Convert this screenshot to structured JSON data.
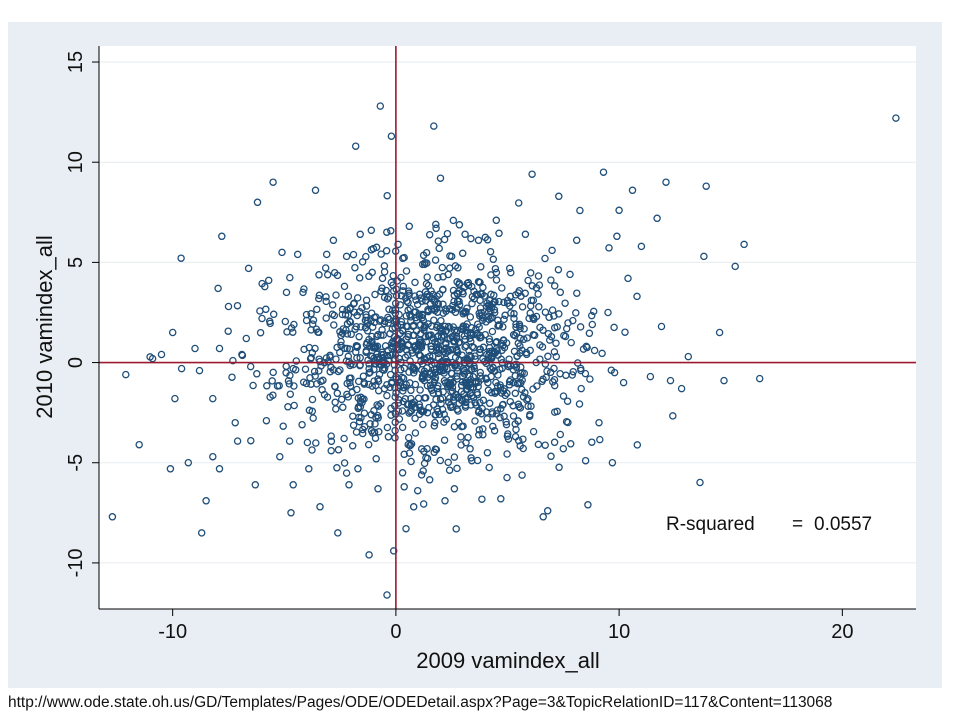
{
  "chart_data": {
    "type": "scatter",
    "title": "",
    "xlabel": "2009 vamindex_all",
    "ylabel": "2010 vamindex_all",
    "xlim": [
      -13.3,
      23.3
    ],
    "ylim": [
      -12.3,
      15.8
    ],
    "x_ticks": [
      -10,
      0,
      10,
      20
    ],
    "x_tick_labels": [
      "-10",
      "0",
      "10",
      "20"
    ],
    "y_ticks": [
      -10,
      -5,
      0,
      5,
      10,
      15
    ],
    "y_tick_labels": [
      "-10",
      "-5",
      "0",
      "5",
      "10",
      "15"
    ],
    "grid": "horizontal",
    "reference_lines": {
      "x": 0,
      "y": 0
    },
    "colors": {
      "marker": "#1f4e79",
      "reference": "#9b1b30",
      "grid": "#e6ebef",
      "panel": "#e8eef3",
      "plot": "#ffffff"
    },
    "annotation": {
      "label": "R-squared",
      "equals": "=",
      "value": "0.0557"
    },
    "points": [
      [
        22.4,
        12.2
      ],
      [
        -12.7,
        -7.7
      ],
      [
        -12.1,
        -0.6
      ],
      [
        -11.5,
        -4.1
      ],
      [
        -10.9,
        0.2
      ],
      [
        -10.5,
        0.4
      ],
      [
        -10.1,
        -5.3
      ],
      [
        -10.0,
        1.5
      ],
      [
        -9.9,
        -1.8
      ],
      [
        -9.3,
        -5.0
      ],
      [
        -9.0,
        0.7
      ],
      [
        -8.8,
        -0.4
      ],
      [
        -8.7,
        -8.5
      ],
      [
        -8.5,
        -6.9
      ],
      [
        -8.2,
        -4.7
      ],
      [
        -8.2,
        -1.8
      ],
      [
        -7.9,
        -5.3
      ],
      [
        -7.9,
        0.7
      ],
      [
        -7.8,
        6.3
      ],
      [
        -7.5,
        2.8
      ],
      [
        -7.2,
        -3.0
      ],
      [
        -6.9,
        0.4
      ],
      [
        -6.7,
        1.2
      ],
      [
        -6.6,
        4.7
      ],
      [
        -6.5,
        -3.9
      ],
      [
        -6.3,
        -6.1
      ],
      [
        -6.2,
        8.0
      ],
      [
        -6.0,
        2.2
      ],
      [
        -5.7,
        4.1
      ],
      [
        -5.5,
        9.0
      ],
      [
        -5.2,
        -4.7
      ],
      [
        -5.1,
        5.5
      ],
      [
        -4.7,
        -7.5
      ],
      [
        -4.6,
        -6.1
      ],
      [
        -4.4,
        5.4
      ],
      [
        -4.2,
        -3.1
      ],
      [
        -4.0,
        2.1
      ],
      [
        -3.9,
        -5.3
      ],
      [
        -3.6,
        8.6
      ],
      [
        -3.4,
        -7.2
      ],
      [
        -3.1,
        5.4
      ],
      [
        -2.9,
        -4.4
      ],
      [
        -2.8,
        6.1
      ],
      [
        -2.6,
        -8.5
      ],
      [
        -2.3,
        3.8
      ],
      [
        -2.1,
        -6.1
      ],
      [
        -1.8,
        10.8
      ],
      [
        -1.7,
        -5.3
      ],
      [
        -1.6,
        6.4
      ],
      [
        -1.4,
        -3.2
      ],
      [
        -1.2,
        -9.6
      ],
      [
        -1.1,
        6.6
      ],
      [
        -0.8,
        -6.3
      ],
      [
        -0.7,
        12.8
      ],
      [
        -0.6,
        4.2
      ],
      [
        -0.4,
        -11.6
      ],
      [
        -0.2,
        11.3
      ],
      [
        -0.1,
        -9.4
      ],
      [
        0.1,
        5.9
      ],
      [
        0.3,
        -5.5
      ],
      [
        0.6,
        6.8
      ],
      [
        0.8,
        -7.2
      ],
      [
        1.2,
        4.9
      ],
      [
        1.4,
        -4.3
      ],
      [
        1.7,
        11.8
      ],
      [
        1.8,
        6.7
      ],
      [
        2.0,
        9.2
      ],
      [
        2.2,
        -6.9
      ],
      [
        2.5,
        5.3
      ],
      [
        2.7,
        -8.3
      ],
      [
        3.1,
        6.4
      ],
      [
        3.4,
        -4.9
      ],
      [
        3.7,
        6.1
      ],
      [
        4.1,
        -4.5
      ],
      [
        4.5,
        7.1
      ],
      [
        4.7,
        -6.8
      ],
      [
        5.1,
        4.7
      ],
      [
        5.5,
        -3.9
      ],
      [
        5.8,
        6.4
      ],
      [
        6.1,
        9.4
      ],
      [
        6.3,
        2.3
      ],
      [
        6.6,
        -7.7
      ],
      [
        6.8,
        -7.4
      ],
      [
        7.0,
        5.6
      ],
      [
        7.3,
        8.3
      ],
      [
        7.5,
        -4.3
      ],
      [
        7.8,
        4.4
      ],
      [
        8.1,
        6.1
      ],
      [
        8.3,
        -1.3
      ],
      [
        8.5,
        -4.9
      ],
      [
        8.6,
        -7.1
      ],
      [
        8.8,
        1.9
      ],
      [
        9.1,
        -3.0
      ],
      [
        9.3,
        9.5
      ],
      [
        9.5,
        2.5
      ],
      [
        9.7,
        -5.0
      ],
      [
        9.9,
        6.3
      ],
      [
        10.0,
        7.6
      ],
      [
        10.2,
        -1.0
      ],
      [
        10.4,
        4.2
      ],
      [
        10.6,
        8.6
      ],
      [
        10.8,
        3.3
      ],
      [
        11.0,
        5.8
      ],
      [
        11.4,
        -0.7
      ],
      [
        11.7,
        7.2
      ],
      [
        11.9,
        1.8
      ],
      [
        12.1,
        9.0
      ],
      [
        12.3,
        -0.9
      ],
      [
        12.8,
        -1.3
      ],
      [
        13.1,
        0.3
      ],
      [
        13.8,
        5.3
      ],
      [
        13.9,
        8.8
      ],
      [
        14.5,
        1.5
      ],
      [
        14.7,
        -0.9
      ],
      [
        15.2,
        4.8
      ],
      [
        15.6,
        5.9
      ],
      [
        16.3,
        -0.8
      ],
      [
        -9.6,
        -0.3
      ],
      [
        -7.3,
        0.1
      ],
      [
        -5.8,
        -2.9
      ],
      [
        -4.9,
        3.5
      ],
      [
        -3.2,
        -1.6
      ],
      [
        -2.4,
        2.4
      ],
      [
        3.9,
        -3.6
      ],
      [
        5.0,
        3.1
      ],
      [
        6.0,
        -2.6
      ],
      [
        7.6,
        1.3
      ],
      [
        8.9,
        0.6
      ],
      [
        9.8,
        -0.5
      ]
    ],
    "cluster": {
      "center": [
        1.8,
        0.3
      ],
      "spread": [
        3.1,
        2.5
      ],
      "count": 1300,
      "seed": 20092010
    }
  },
  "source_url": "http://www.ode.state.oh.us/GD/Templates/Pages/ODE/ODEDetail.aspx?Page=3&TopicRelationID=117&Content=113068"
}
